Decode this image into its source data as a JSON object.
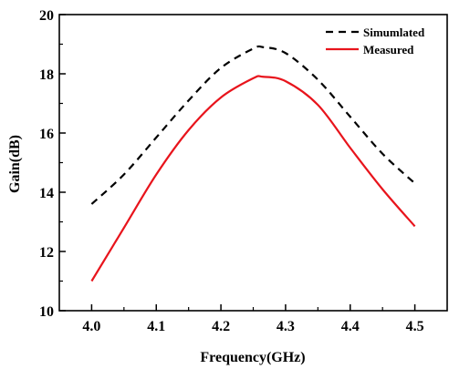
{
  "chart_data": {
    "type": "line",
    "title": "",
    "xlabel": "Frequency(GHz)",
    "ylabel": "Gain(dB)",
    "xlim": [
      3.95,
      4.55
    ],
    "ylim": [
      10,
      20
    ],
    "xticks": [
      "4.0",
      "4.1",
      "4.2",
      "4.3",
      "4.4",
      "4.5"
    ],
    "xtick_values": [
      4.0,
      4.1,
      4.2,
      4.3,
      4.4,
      4.5
    ],
    "yticks": [
      "10",
      "12",
      "14",
      "16",
      "18",
      "20"
    ],
    "ytick_values": [
      10,
      12,
      14,
      16,
      18,
      20
    ],
    "grid": false,
    "legend_position": "top-right",
    "series": [
      {
        "name": "Simumlated",
        "color": "#000000",
        "style": "dashed",
        "x": [
          4.0,
          4.05,
          4.1,
          4.15,
          4.2,
          4.25,
          4.265,
          4.3,
          4.35,
          4.4,
          4.45,
          4.5
        ],
        "y": [
          13.6,
          14.6,
          15.85,
          17.1,
          18.2,
          18.85,
          18.9,
          18.7,
          17.8,
          16.55,
          15.3,
          14.3
        ]
      },
      {
        "name": "Measured",
        "color": "#e8141c",
        "style": "solid",
        "x": [
          4.0,
          4.05,
          4.1,
          4.15,
          4.2,
          4.25,
          4.265,
          4.3,
          4.35,
          4.4,
          4.45,
          4.5
        ],
        "y": [
          11.0,
          12.8,
          14.6,
          16.1,
          17.2,
          17.85,
          17.9,
          17.75,
          16.95,
          15.5,
          14.1,
          12.85
        ]
      }
    ]
  }
}
